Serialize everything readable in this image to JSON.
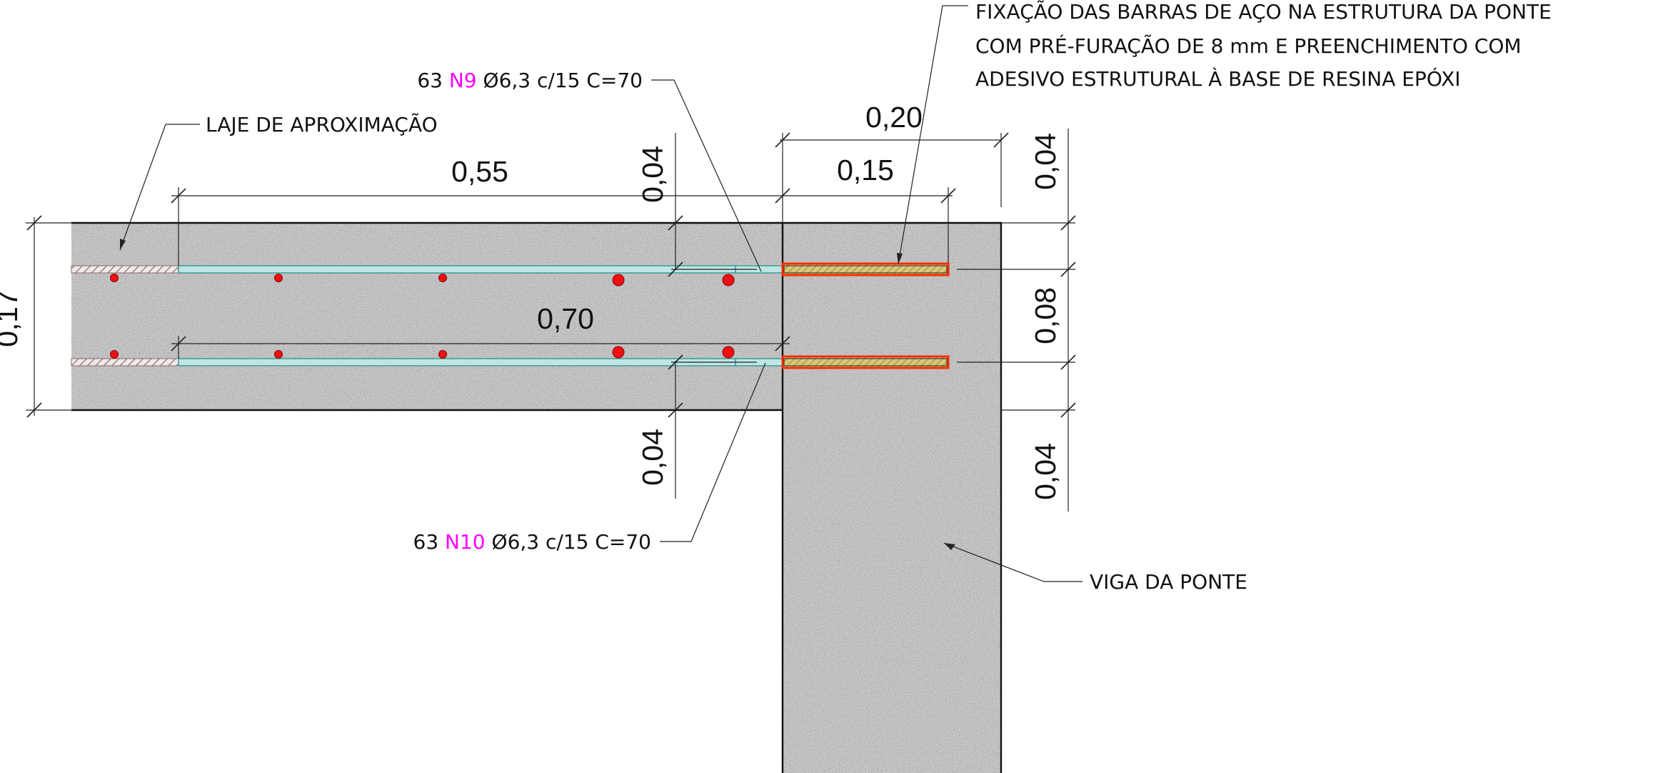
{
  "dimensions": {
    "top_overall": "0,20",
    "top_embed": "0,15",
    "slab_span": "0,55",
    "rebar_length": "0,70",
    "cover_top": "0,04",
    "cover_bottom": "0,04",
    "right_top": "0,04",
    "right_mid": "0,08",
    "right_bottom": "0,04",
    "slab_thickness": "0,17"
  },
  "labels": {
    "approach_slab": "LAJE DE APROXIMAÇÃO",
    "bridge_beam": "VIGA DA PONTE",
    "fixing_note_line1": "FIXAÇÃO DAS BARRAS DE AÇO NA ESTRUTURA DA PONTE",
    "fixing_note_line2": "COM PRÉ-FURAÇÃO DE 8 mm E PREENCHIMENTO COM",
    "fixing_note_line3": "ADESIVO ESTRUTURAL À BASE DE RESINA EPÓXI"
  },
  "rebar_n9": {
    "qty": "63",
    "mark": "N9",
    "spec": "Ø6,3 c/15 C=70"
  },
  "rebar_n10": {
    "qty": "63",
    "mark": "N10",
    "spec": "Ø6,3 c/15 C=70"
  },
  "colors": {
    "concrete": "#c9c9c9",
    "rebar": "#bfe6e3",
    "rebar_edge": "#3a9b9b",
    "anchor_fill": "#c9b36a",
    "anchor_edge": "#ff2a00",
    "rebar_dot": "#ee1111",
    "mark_text": "#ff00ff"
  }
}
